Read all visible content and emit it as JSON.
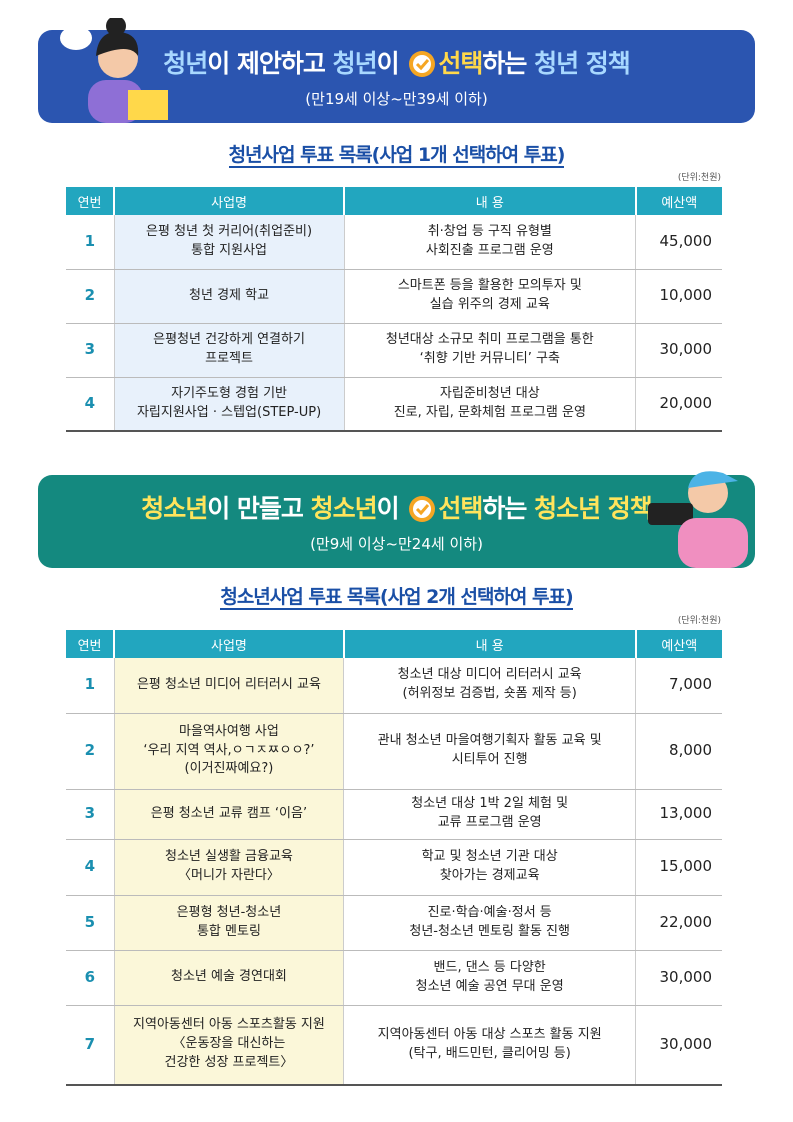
{
  "sections": [
    {
      "banner": {
        "title_left": [
          {
            "text": "청년",
            "color": "#a8d8ff"
          },
          {
            "text": "이 제안하고 ",
            "color": "#ffffff"
          },
          {
            "text": "청년",
            "color": "#a8d8ff"
          },
          {
            "text": "이 ",
            "color": "#ffffff"
          }
        ],
        "title_right": [
          {
            "text": "선택",
            "color": "#ffd84a"
          },
          {
            "text": "하는 ",
            "color": "#ffffff"
          },
          {
            "text": "청년 정책",
            "color": "#a8d8ff"
          }
        ],
        "subtitle": "(만19세 이상~만39세 이하)",
        "color": "#2b55b0"
      },
      "heading": "청년사업 투표 목록(사업 1개 선택하여 투표)",
      "unit": "(단위:천원)",
      "name_bg": "#e8f1fb",
      "columns": [
        "연번",
        "사업명",
        "내 용",
        "예산액"
      ],
      "rows": [
        [
          "1",
          "은평 청년 첫 커리어(취업준비)\n통합 지원사업",
          "취·창업 등 구직 유형별\n사회진출 프로그램 운영",
          "45,000"
        ],
        [
          "2",
          "청년 경제 학교",
          "스마트폰 등을 활용한 모의투자 및\n실습 위주의 경제 교육",
          "10,000"
        ],
        [
          "3",
          "은평청년 건강하게 연결하기\n프로젝트",
          "청년대상 소규모 취미 프로그램을 통한\n‘취향 기반 커뮤니티’ 구축",
          "30,000"
        ],
        [
          "4",
          "자기주도형 경험 기반\n자립지원사업 · 스텝업(STEP-UP)",
          "자립준비청년 대상\n진로, 자립, 문화체험 프로그램 운영",
          "20,000"
        ]
      ]
    },
    {
      "banner": {
        "title_left": [
          {
            "text": "청소년",
            "color": "#ffe45c"
          },
          {
            "text": "이 만들고 ",
            "color": "#ffffff"
          },
          {
            "text": "청소년",
            "color": "#ffe45c"
          },
          {
            "text": "이 ",
            "color": "#ffffff"
          }
        ],
        "title_right": [
          {
            "text": "선택",
            "color": "#ffe45c"
          },
          {
            "text": "하는 ",
            "color": "#ffffff"
          },
          {
            "text": "청소년 정책",
            "color": "#ffe45c"
          }
        ],
        "subtitle": "(만9세 이상~만24세 이하)",
        "color": "#14897f"
      },
      "heading": "청소년사업 투표 목록(사업 2개 선택하여 투표)",
      "unit": "(단위:천원)",
      "name_bg": "#fbf7d9",
      "columns": [
        "연번",
        "사업명",
        "내 용",
        "예산액"
      ],
      "rows": [
        [
          "1",
          "은평 청소년 미디어 리터러시 교육",
          "청소년 대상 미디어 리터러시 교육\n(허위정보 검증법, 숏폼 제작 등)",
          "7,000"
        ],
        [
          "2",
          "마을역사여행 사업\n‘우리 지역 역사,ㅇㄱㅈㅉㅇㅇ?’\n(이거진짜예요?)",
          "관내 청소년 마을여행기획자 활동 교육 및\n시티투어 진행",
          "8,000"
        ],
        [
          "3",
          "은평 청소년 교류 캠프 ‘이음’",
          "청소년 대상 1박 2일 체험 및\n교류 프로그램 운영",
          "13,000"
        ],
        [
          "4",
          "청소년 실생활 금융교육\n〈머니가 자란다〉",
          "학교 및 청소년 기관 대상\n찾아가는 경제교육",
          "15,000"
        ],
        [
          "5",
          "은평형 청년-청소년\n통합 멘토링",
          "진로·학습·예술·정서 등\n청년-청소년 멘토링 활동 진행",
          "22,000"
        ],
        [
          "6",
          "청소년 예술 경연대회",
          "밴드, 댄스 등 다양한\n청소년 예술 공연 무대 운영",
          "30,000"
        ],
        [
          "7",
          "지역아동센터 아동 스포츠활동 지원\n〈운동장을 대신하는\n건강한 성장 프로젝트〉",
          "지역아동센터 아동 대상 스포츠 활동 지원\n(탁구, 배드민턴, 클리어밍 등)",
          "30,000"
        ]
      ]
    }
  ]
}
